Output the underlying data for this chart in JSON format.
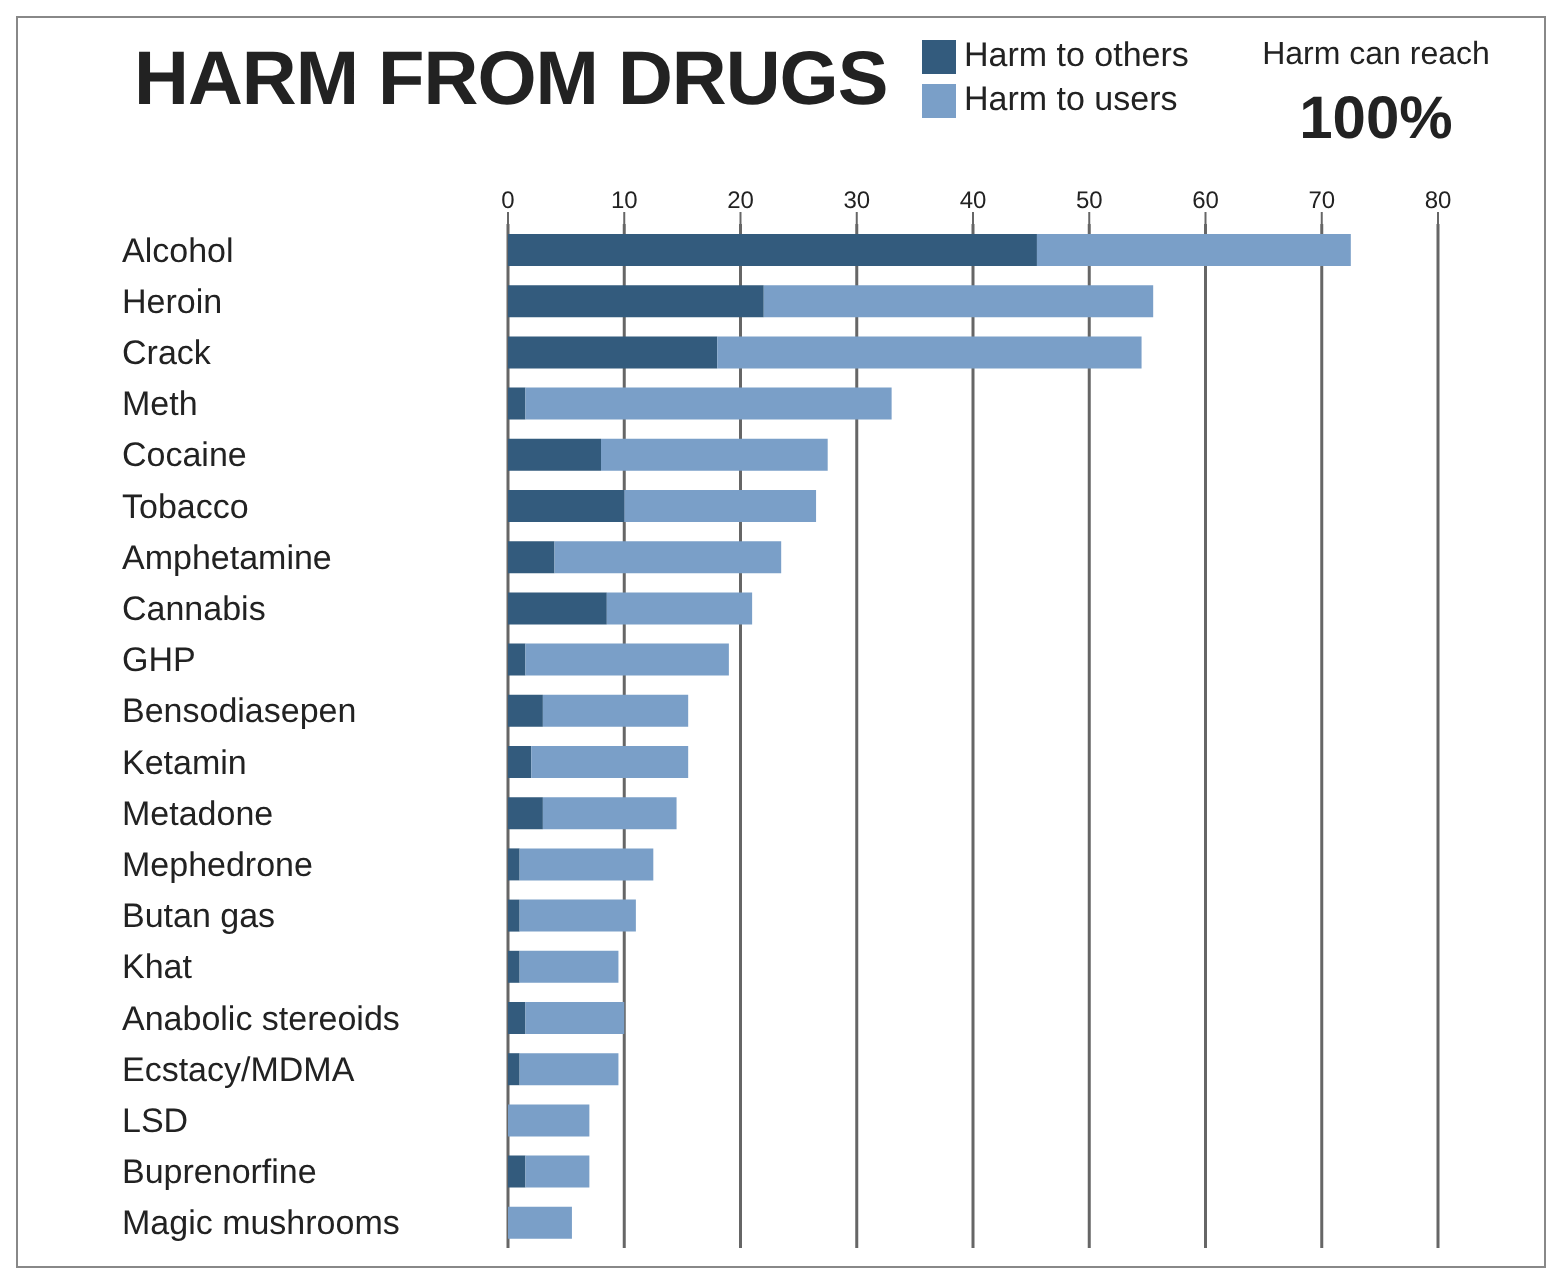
{
  "chart_data": {
    "type": "bar",
    "title": "HARM FROM DRUGS",
    "orientation": "horizontal",
    "stacked": true,
    "categories": [
      "Alcohol",
      "Heroin",
      "Crack",
      "Meth",
      "Cocaine",
      "Tobacco",
      "Amphetamine",
      "Cannabis",
      "GHP",
      "Bensodiasepen",
      "Ketamin",
      "Metadone",
      "Mephedrone",
      "Butan gas",
      "Khat",
      "Anabolic stereoids",
      "Ecstacy/MDMA",
      "LSD",
      "Buprenorfine",
      "Magic mushrooms"
    ],
    "series": [
      {
        "name": "Harm to others",
        "color": "#335b7d",
        "values": [
          45.5,
          22,
          18,
          1.5,
          8,
          10,
          4,
          8.5,
          1.5,
          3,
          2,
          3,
          1,
          1,
          1,
          1.5,
          1,
          0,
          1.5,
          0
        ]
      },
      {
        "name": "Harm to users",
        "color": "#7a9fc8",
        "values": [
          27,
          33.5,
          36.5,
          31.5,
          19.5,
          16.5,
          19.5,
          12.5,
          17.5,
          12.5,
          13.5,
          11.5,
          11.5,
          10,
          8.5,
          8.5,
          8.5,
          7,
          5.5,
          5.5
        ]
      }
    ],
    "xlim": [
      0,
      80
    ],
    "xticks": [
      0,
      10,
      20,
      30,
      40,
      50,
      60,
      70,
      80
    ],
    "grid": "x",
    "legend": "top",
    "annotations": [
      "Harm can reach",
      "100%"
    ]
  }
}
